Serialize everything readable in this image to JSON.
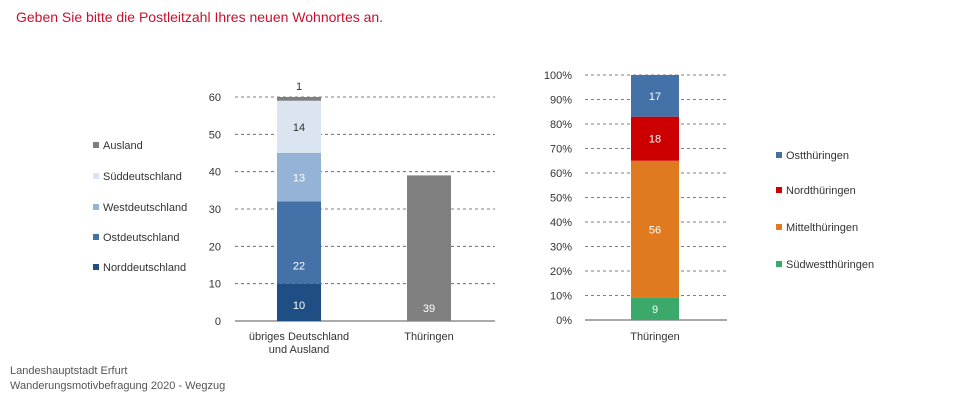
{
  "title": "Geben Sie bitte die Postleitzahl Ihres neuen Wohnortes an.",
  "source": [
    "Landeshauptstadt Erfurt",
    "Wanderungsmotivbefragung 2020 - Wegzug"
  ],
  "colors": {
    "Norddeutschland": "#1f4e85",
    "Ostdeutschland": "#4472a8",
    "Westdeutschland": "#95b3d7",
    "Süddeutschland": "#dbe5f1",
    "Ausland": "#7f7f7f",
    "Thüringen": "#808080",
    "Ostthüringen": "#4472a8",
    "Nordthüringen": "#cc0000",
    "Mittelthüringen": "#e07a21",
    "Südwestthüringen": "#3aa96a"
  },
  "chart_data": [
    {
      "type": "bar",
      "stacked": true,
      "categories": [
        "übriges Deutschland und Ausland",
        "Thüringen"
      ],
      "category_lines": [
        [
          "übriges Deutschland",
          "und Ausland"
        ],
        [
          "Thüringen"
        ]
      ],
      "ylim": [
        0,
        60
      ],
      "yticks": [
        0,
        10,
        20,
        30,
        40,
        50,
        60
      ],
      "grid": true,
      "legend": "left",
      "series": [
        {
          "name": "Norddeutschland",
          "values": [
            10,
            null
          ]
        },
        {
          "name": "Ostdeutschland",
          "values": [
            22,
            null
          ]
        },
        {
          "name": "Westdeutschland",
          "values": [
            13,
            null
          ]
        },
        {
          "name": "Süddeutschland",
          "values": [
            14,
            null
          ]
        },
        {
          "name": "Ausland",
          "values": [
            1,
            null
          ]
        },
        {
          "name": "Thüringen",
          "values": [
            null,
            39
          ]
        }
      ],
      "legend_entries": [
        "Ausland",
        "Süddeutschland",
        "Westdeutschland",
        "Ostdeutschland",
        "Norddeutschland"
      ]
    },
    {
      "type": "bar",
      "stacked": true,
      "percent": true,
      "categories": [
        "Thüringen"
      ],
      "ylim": [
        0,
        100
      ],
      "yticks": [
        "0%",
        "10%",
        "20%",
        "30%",
        "40%",
        "50%",
        "60%",
        "70%",
        "80%",
        "90%",
        "100%"
      ],
      "grid": true,
      "legend": "right",
      "series": [
        {
          "name": "Südwestthüringen",
          "values": [
            9
          ]
        },
        {
          "name": "Mittelthüringen",
          "values": [
            56
          ]
        },
        {
          "name": "Nordthüringen",
          "values": [
            18
          ]
        },
        {
          "name": "Ostthüringen",
          "values": [
            17
          ]
        }
      ],
      "legend_entries": [
        "Ostthüringen",
        "Nordthüringen",
        "Mittelthüringen",
        "Südwestthüringen"
      ]
    }
  ]
}
